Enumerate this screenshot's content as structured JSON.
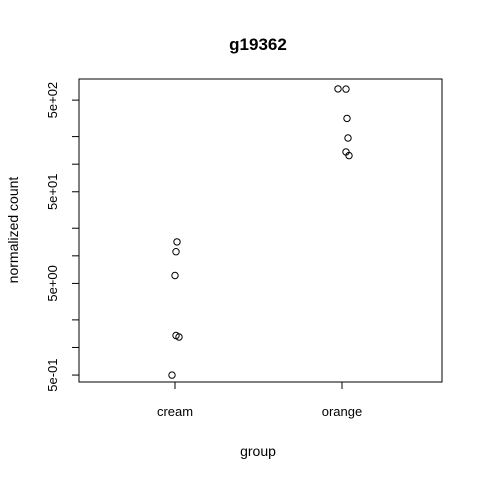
{
  "chart_data": {
    "type": "scatter",
    "title": "g19362",
    "xlabel": "group",
    "ylabel": "normalized count",
    "categories": [
      "cream",
      "orange"
    ],
    "y_scale": "log",
    "yticks": [
      {
        "value": 0.5,
        "label": "5e-01"
      },
      {
        "value": 5,
        "label": "5e+00"
      },
      {
        "value": 50,
        "label": "5e+01"
      },
      {
        "value": 500,
        "label": "5e+02"
      }
    ],
    "ylim": [
      0.42,
      850
    ],
    "grid": false,
    "series": [
      {
        "category": "cream",
        "values": [
          0.5,
          1.3,
          1.35,
          6.1,
          11.1,
          14.2
        ]
      },
      {
        "category": "orange",
        "values": [
          124,
          136,
          193,
          316,
          660,
          662
        ]
      }
    ]
  }
}
